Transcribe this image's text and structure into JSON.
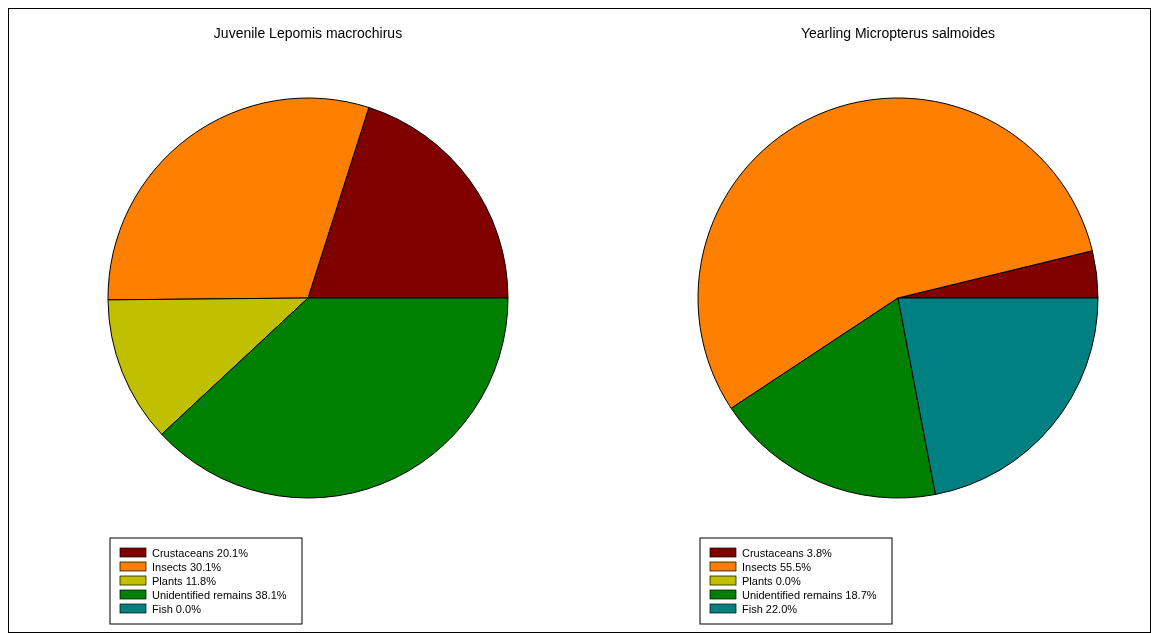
{
  "chart_data": [
    {
      "type": "pie",
      "title": "Juvenile Lepomis macrochirus",
      "categories": [
        "Crustaceans",
        "Insects",
        "Plants",
        "Unidentified remains",
        "Fish"
      ],
      "values": [
        20.1,
        30.1,
        11.8,
        38.1,
        0.0
      ],
      "value_labels": [
        "20.1%",
        "30.1%",
        "11.8%",
        "38.1%",
        "0.0%"
      ],
      "colors": [
        "#800000",
        "#ff8000",
        "#c0c000",
        "#008000",
        "#008080"
      ],
      "legend": "bottom left"
    },
    {
      "type": "pie",
      "title": "Yearling Micropterus salmoides",
      "categories": [
        "Crustaceans",
        "Insects",
        "Plants",
        "Unidentified remains",
        "Fish"
      ],
      "values": [
        3.8,
        55.5,
        0.0,
        18.7,
        22.0
      ],
      "value_labels": [
        "3.8%",
        "55.5%",
        "0.0%",
        "18.7%",
        "22.0%"
      ],
      "colors": [
        "#800000",
        "#ff8000",
        "#c0c000",
        "#008000",
        "#008080"
      ],
      "legend": "bottom left"
    }
  ]
}
